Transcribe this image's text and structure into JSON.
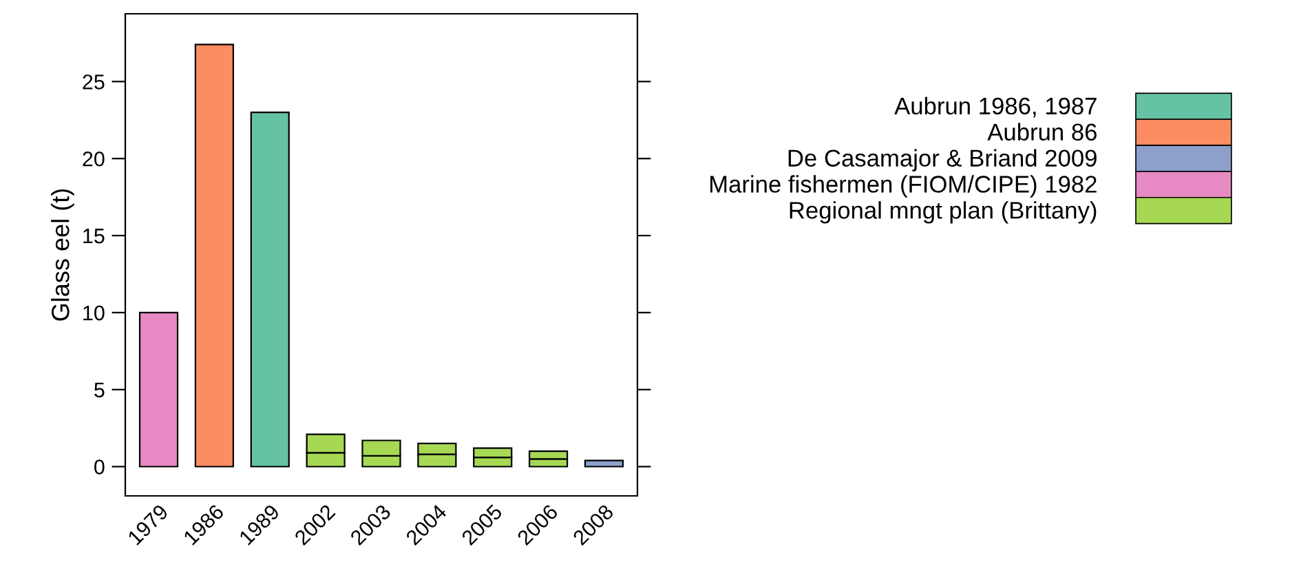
{
  "chart_data": {
    "type": "bar",
    "stacked": true,
    "ylabel": "Glass eel (t)",
    "categories": [
      "1979",
      "1986",
      "1989",
      "2002",
      "2003",
      "2004",
      "2005",
      "2006",
      "2008"
    ],
    "ylim": [
      -1.9,
      29.4
    ],
    "yticks": [
      0,
      5,
      10,
      15,
      20,
      25
    ],
    "grid": false,
    "legend": "right",
    "series": [
      {
        "name": "Aubrun 1986, 1987",
        "color": "#66c2a5",
        "values": [
          null,
          null,
          23,
          null,
          null,
          null,
          null,
          null,
          null
        ]
      },
      {
        "name": "Aubrun 86",
        "color": "#fc8d62",
        "values": [
          null,
          27.4,
          null,
          null,
          null,
          null,
          null,
          null,
          null
        ]
      },
      {
        "name": "De Casamajor & Briand 2009",
        "color": "#8da0cb",
        "values": [
          null,
          null,
          null,
          null,
          null,
          null,
          null,
          null,
          0.4
        ]
      },
      {
        "name": "Marine fishermen (FIOM/CIPE) 1982",
        "color": "#e78ac3",
        "values": [
          10,
          null,
          null,
          null,
          null,
          null,
          null,
          null,
          null
        ]
      },
      {
        "name": "Regional mngt plan (Brittany)",
        "color": "#a6d854",
        "values": [
          null,
          null,
          null,
          0.9,
          0.7,
          0.8,
          0.6,
          0.5,
          null
        ]
      },
      {
        "color": "#a6d854",
        "values": [
          null,
          null,
          null,
          1.2,
          1.0,
          0.7,
          0.6,
          0.5,
          null
        ]
      }
    ]
  }
}
